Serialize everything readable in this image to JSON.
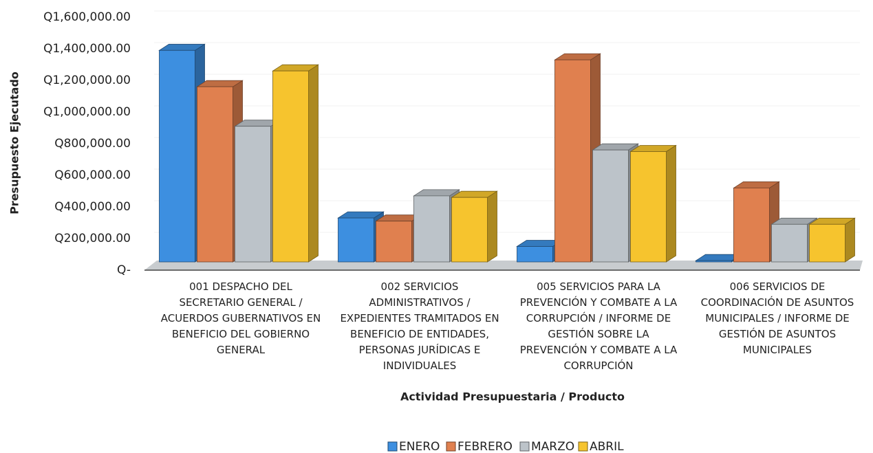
{
  "chart_data": {
    "type": "bar3d",
    "y_label": "Presupuesto Ejecutado",
    "x_label": "Actividad Presupuestaria / Producto",
    "categories": [
      "001 DESPACHO DEL SECRETARIO GENERAL / ACUERDOS GUBERNATIVOS EN BENEFICIO DEL GOBIERNO GENERAL",
      "002 SERVICIOS ADMINISTRATIVOS / EXPEDIENTES TRAMITADOS EN BENEFICIO DE ENTIDADES, PERSONAS JURÍDICAS E INDIVIDUALES",
      "005 SERVICIOS PARA LA PREVENCIÓN Y COMBATE A LA CORRUPCIÓN / INFORME DE GESTIÓN SOBRE LA PREVENCIÓN Y COMBATE A LA CORRUPCIÓN",
      "006 SERVICIOS DE COORDINACIÓN DE ASUNTOS MUNICIPALES / INFORME DE GESTIÓN DE ASUNTOS MUNICIPALES"
    ],
    "series": [
      {
        "name": "ENERO",
        "color": "#3d8fe0",
        "values": [
          1390000,
          330000,
          150000,
          60000
        ]
      },
      {
        "name": "FEBRERO",
        "color": "#e0804f",
        "values": [
          1160000,
          310000,
          1330000,
          520000
        ]
      },
      {
        "name": "MARZO",
        "color": "#bcc3c9",
        "values": [
          910000,
          470000,
          760000,
          290000
        ]
      },
      {
        "name": "ABRIL",
        "color": "#f6c42e",
        "values": [
          1260000,
          460000,
          750000,
          290000
        ]
      }
    ],
    "ylim": [
      0,
      1600000
    ],
    "yticks": [
      {
        "value": 0,
        "label": "Q-"
      },
      {
        "value": 200000,
        "label": "Q200,000.00"
      },
      {
        "value": 400000,
        "label": "Q400,000.00"
      },
      {
        "value": 600000,
        "label": "Q600,000.00"
      },
      {
        "value": 800000,
        "label": "Q800,000.00"
      },
      {
        "value": 1000000,
        "label": "Q1,000,000.00"
      },
      {
        "value": 1200000,
        "label": "Q1,200,000.00"
      },
      {
        "value": 1400000,
        "label": "Q1,400,000.00"
      },
      {
        "value": 1600000,
        "label": "Q1,600,000.00"
      }
    ],
    "legend": "bottom"
  }
}
